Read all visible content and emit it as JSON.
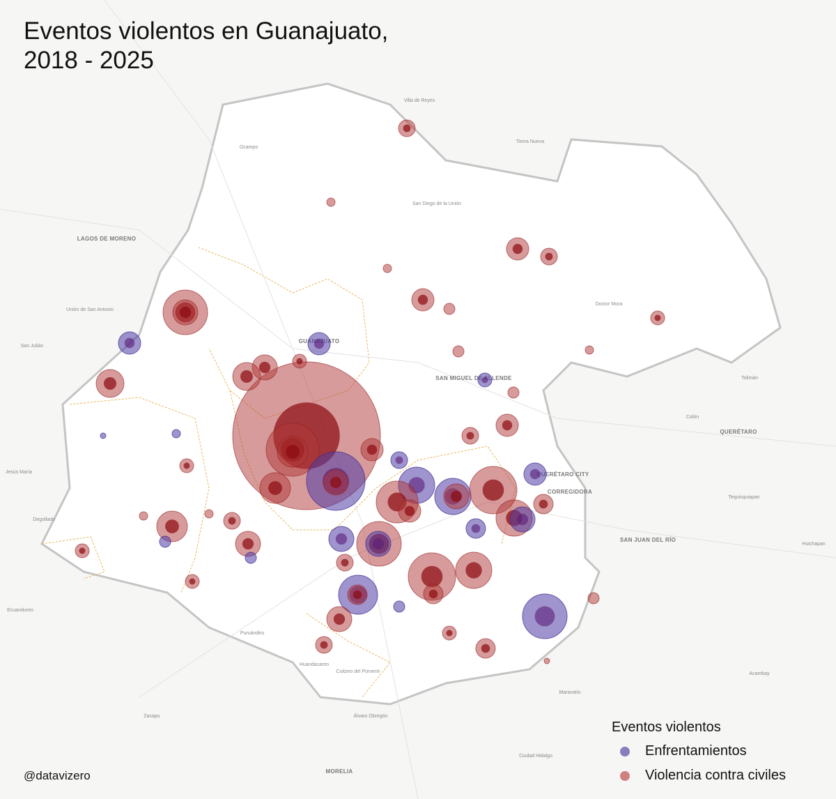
{
  "title": "Eventos violentos en Guanajuato, 2018 - 2025",
  "credit": "@datavizero",
  "legend": {
    "title": "Eventos violentos",
    "items": [
      {
        "label": "Enfrentamientos",
        "color": "#5b4aa6"
      },
      {
        "label": "Violencia contra civiles",
        "color": "#c0504d"
      }
    ]
  },
  "places": [
    "LAGOS DE MORENO",
    "GUANAJUATO",
    "SAN MIGUEL DE ALLENDE",
    "QUERÉTARO",
    "QUERÉTARO CITY",
    "CORREGIDORA",
    "SAN JUAN DEL RÍO",
    "MORELIA",
    "Ocampo",
    "San Diego de la Unión",
    "Doctor Mora",
    "Tolimán",
    "Colón",
    "Tierra Nueva",
    "Villa de Reyes",
    "Unión de San Antonio",
    "San Julián",
    "Jesús María",
    "Degollado",
    "Ecuandureo",
    "Puruándiro",
    "Huandacareo",
    "Maravatío",
    "Acambay",
    "Ciudad Hidalgo",
    "Zacapu",
    "Tequisquiapan",
    "Huichapan",
    "Cuitzeo del Porvenir",
    "Álvaro Obregón"
  ]
}
